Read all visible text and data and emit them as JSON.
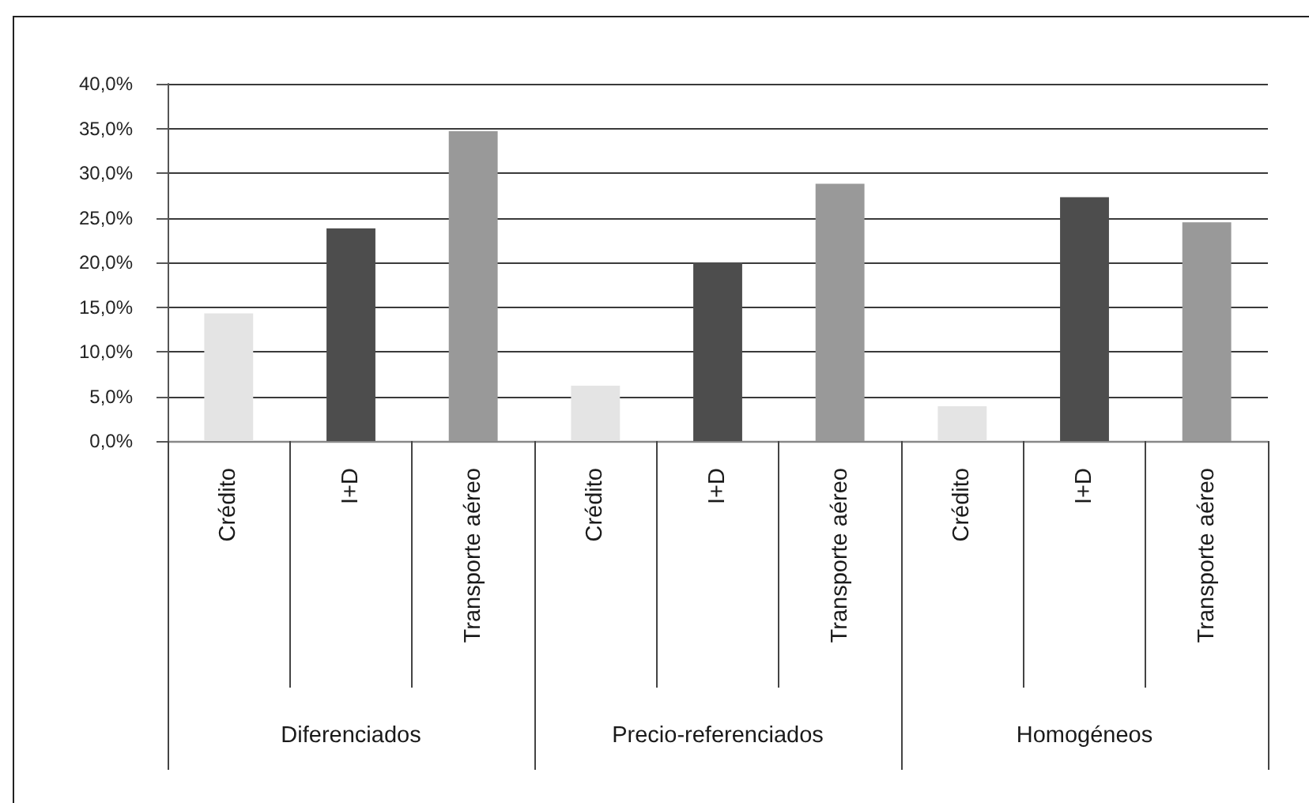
{
  "chart_data": {
    "type": "bar",
    "categories": [
      "Crédito",
      "I+D",
      "Transporte aéreo",
      "Crédito",
      "I+D",
      "Transporte aéreo",
      "Crédito",
      "I+D",
      "Transporte aéreo"
    ],
    "values": [
      14.3,
      23.8,
      34.7,
      6.2,
      20.0,
      28.8,
      3.9,
      27.3,
      24.5
    ],
    "colors": [
      "#e4e4e4",
      "#4d4d4d",
      "#999999",
      "#e4e4e4",
      "#4d4d4d",
      "#999999",
      "#e4e4e4",
      "#4d4d4d",
      "#999999"
    ],
    "annotations": [
      "Diferenciados",
      "Precio-referenciados",
      "Homogéneos"
    ],
    "ylim": [
      0,
      40
    ],
    "yticks": [
      {
        "value": 0,
        "label": "0,0%"
      },
      {
        "value": 5,
        "label": "5,0%"
      },
      {
        "value": 10,
        "label": "10,0%"
      },
      {
        "value": 15,
        "label": "15,0%"
      },
      {
        "value": 20,
        "label": "20,0%"
      },
      {
        "value": 25,
        "label": "25,0%"
      },
      {
        "value": 30,
        "label": "30,0%"
      },
      {
        "value": 35,
        "label": "35,0%"
      },
      {
        "value": 40,
        "label": "40,0%"
      }
    ],
    "grid": "y"
  }
}
